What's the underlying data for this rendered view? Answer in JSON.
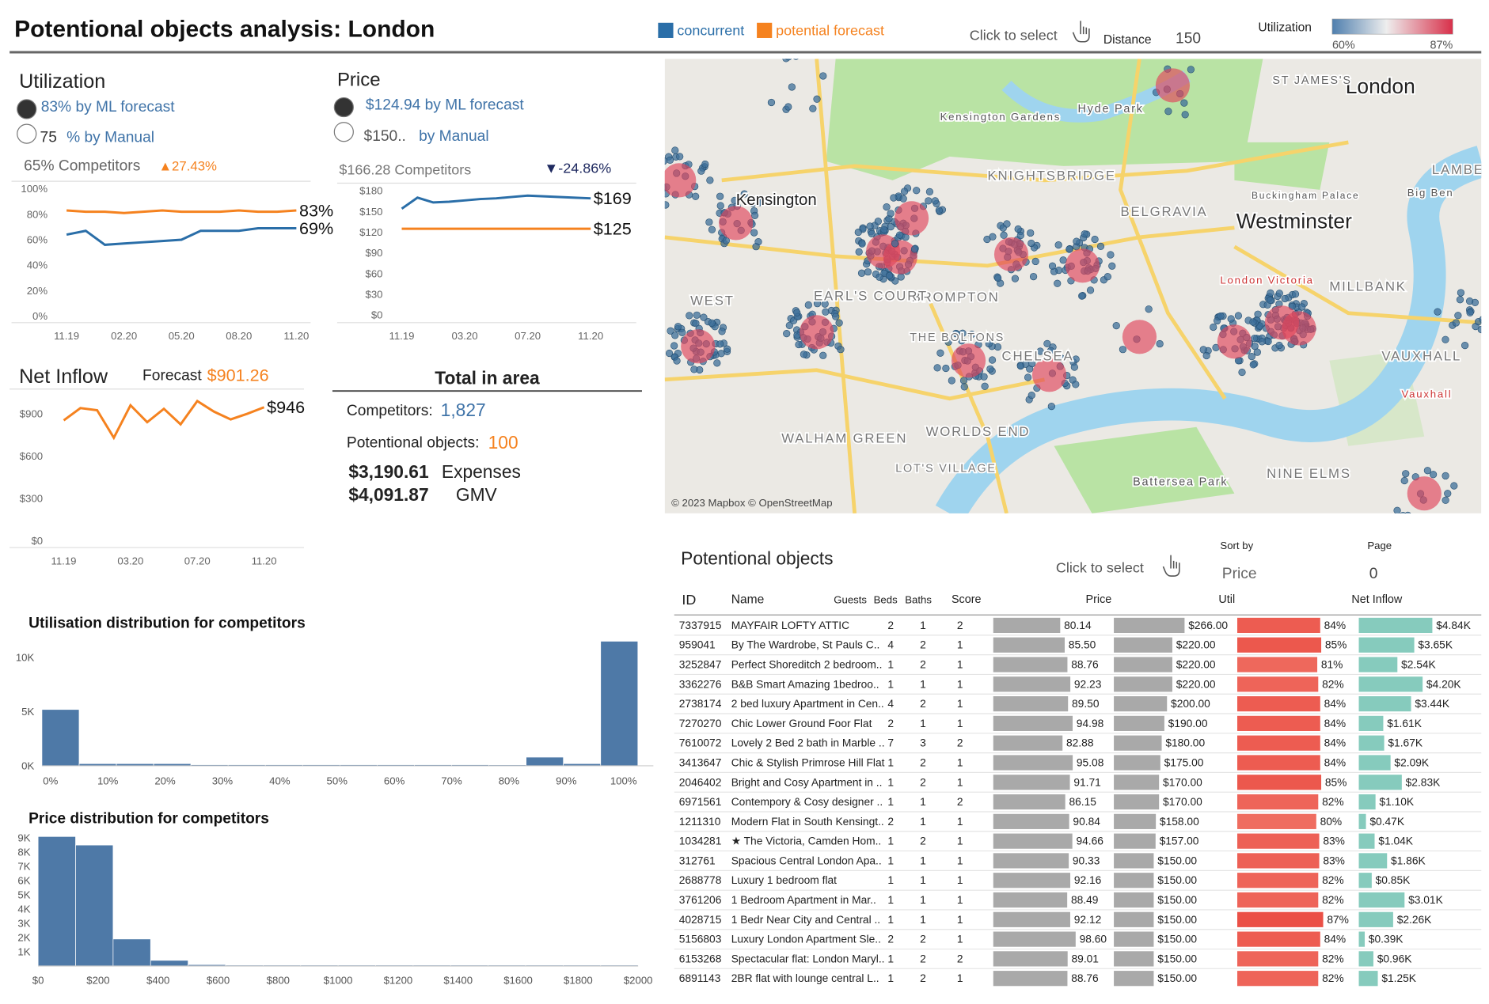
{
  "header": {
    "title": "Potentional objects analysis: London",
    "legend": [
      {
        "name": "concurrent",
        "color": "#2a6ea8"
      },
      {
        "name": "potential forecast",
        "color": "#f5821f"
      }
    ],
    "click_to_select": "Click to select",
    "distance_label": "Distance",
    "distance": "150",
    "utilization_label": "Utilization",
    "util_range": [
      {
        "value": 60,
        "label": "60%"
      },
      {
        "value": 87,
        "label": "87%"
      }
    ]
  },
  "utilization": {
    "title": "Utilization",
    "ml": "83% by ML forecast",
    "manual_value": "75",
    "manual_label": "% by Manual",
    "competitors": "65% Competitors",
    "change": "▲27.43%"
  },
  "price": {
    "title": "Price",
    "ml": "$124.94 by ML forecast",
    "manual_value": "$150..",
    "manual_label": "by Manual",
    "competitors": "$166.28 Competitors",
    "change": "▼-24.86%"
  },
  "net_inflow": {
    "title": "Net Inflow",
    "forecast_label": "Forecast",
    "forecast": "$901.26"
  },
  "totals": {
    "title": "Total in area",
    "competitors_label": "Competitors:",
    "competitors": "1,827",
    "objects_label": "Potentional objects:",
    "objects": "100",
    "expenses": "$3,190.61",
    "expenses_label": "Expenses",
    "gmv": "$4,091.87",
    "gmv_label": "GMV"
  },
  "chart_data": [
    {
      "type": "line",
      "categories": [
        "11.19",
        null,
        null,
        "02.20",
        null,
        null,
        "05.20",
        null,
        null,
        "08.20",
        null,
        null,
        "11.20"
      ],
      "ylim": [
        0,
        100
      ],
      "yticks": [
        {
          "value": 0,
          "label": "0%"
        },
        {
          "value": 20,
          "label": "20%"
        },
        {
          "value": 40,
          "label": "40%"
        },
        {
          "value": 60,
          "label": "60%"
        },
        {
          "value": 80,
          "label": "80%"
        },
        {
          "value": 100,
          "label": "100%"
        }
      ],
      "series": [
        {
          "color": "#f5821f",
          "values": [
            83,
            82,
            82,
            81,
            82,
            83,
            82,
            82,
            82,
            83,
            82,
            82,
            83
          ],
          "end_label": "83%"
        },
        {
          "color": "#2a6ea8",
          "values": [
            64,
            67,
            56,
            57,
            58,
            59,
            60,
            67,
            67,
            67,
            69,
            69,
            69
          ],
          "end_label": "69%"
        }
      ]
    },
    {
      "type": "line",
      "categories": [
        "11.19",
        null,
        null,
        null,
        "03.20",
        null,
        null,
        null,
        "07.20",
        null,
        null,
        null,
        "11.20"
      ],
      "ylim": [
        0,
        180
      ],
      "yticks": [
        {
          "value": 0,
          "label": "$0"
        },
        {
          "value": 30,
          "label": "$30"
        },
        {
          "value": 60,
          "label": "$60"
        },
        {
          "value": 90,
          "label": "$90"
        },
        {
          "value": 120,
          "label": "$120"
        },
        {
          "value": 150,
          "label": "$150"
        },
        {
          "value": 180,
          "label": "$180"
        }
      ],
      "series": [
        {
          "color": "#2a6ea8",
          "values": [
            154,
            170,
            163,
            164,
            166,
            168,
            169,
            171,
            173,
            172,
            171,
            170,
            169
          ],
          "end_label": "$169"
        },
        {
          "color": "#f5821f",
          "values": [
            125,
            125,
            125,
            125,
            125,
            125,
            125,
            125,
            125,
            125,
            125,
            125,
            125
          ],
          "end_label": "$125"
        }
      ]
    },
    {
      "type": "line",
      "categories": [
        "11.19",
        null,
        null,
        null,
        "03.20",
        null,
        null,
        null,
        "07.20",
        null,
        null,
        null,
        "11.20"
      ],
      "ylim": [
        0,
        900
      ],
      "yticks": [
        {
          "value": 0,
          "label": "$0"
        },
        {
          "value": 300,
          "label": "$300"
        },
        {
          "value": 600,
          "label": "$600"
        },
        {
          "value": 900,
          "label": "$900"
        }
      ],
      "series": [
        {
          "color": "#f5821f",
          "values": [
            853,
            940,
            925,
            730,
            960,
            840,
            935,
            825,
            990,
            915,
            860,
            900,
            946
          ],
          "end_label": "$946"
        }
      ]
    },
    {
      "type": "histogram",
      "title": "Utilisation distribution for competitors",
      "color": "#4e79a7",
      "bins": [
        -1.5,
        5,
        11.5,
        18,
        24.5,
        31,
        37.5,
        44,
        50.5,
        57,
        63.5,
        70,
        76.5,
        83,
        89.5,
        96,
        102.5
      ],
      "values": [
        5200,
        200,
        200,
        200,
        100,
        100,
        100,
        100,
        100,
        100,
        100,
        100,
        0,
        800,
        200,
        11500
      ],
      "xlim": [
        -1.5,
        105.2
      ],
      "xticks": [
        {
          "value": 0,
          "label": "0%"
        },
        {
          "value": 10,
          "label": "10%"
        },
        {
          "value": 20,
          "label": "20%"
        },
        {
          "value": 30,
          "label": "30%"
        },
        {
          "value": 40,
          "label": "40%"
        },
        {
          "value": 50,
          "label": "50%"
        },
        {
          "value": 60,
          "label": "60%"
        },
        {
          "value": 70,
          "label": "70%"
        },
        {
          "value": 80,
          "label": "80%"
        },
        {
          "value": 90,
          "label": "90%"
        },
        {
          "value": 100,
          "label": "100%"
        }
      ],
      "ylim": [
        0,
        12000
      ],
      "yticks": [
        {
          "value": 0,
          "label": "0K"
        },
        {
          "value": 5000,
          "label": "5K"
        },
        {
          "value": 10000,
          "label": "10K"
        }
      ]
    },
    {
      "type": "histogram",
      "title": "Price distribution for competitors",
      "color": "#4e79a7",
      "bins": [
        0,
        125,
        250,
        375,
        500,
        625,
        750,
        875,
        1000,
        1125,
        1250,
        1375,
        1500,
        1625,
        1750,
        1875,
        2000
      ],
      "values": [
        9100,
        8500,
        1900,
        400,
        100,
        0,
        0,
        0,
        0,
        0,
        0,
        0,
        0,
        0,
        0,
        0
      ],
      "xlim": [
        0,
        2000
      ],
      "xticks": [
        {
          "value": 0,
          "label": "$0"
        },
        {
          "value": 200,
          "label": "$200"
        },
        {
          "value": 400,
          "label": "$400"
        },
        {
          "value": 600,
          "label": "$600"
        },
        {
          "value": 800,
          "label": "$800"
        },
        {
          "value": 1000,
          "label": "$1000"
        },
        {
          "value": 1200,
          "label": "$1200"
        },
        {
          "value": 1400,
          "label": "$1400"
        },
        {
          "value": 1600,
          "label": "$1600"
        },
        {
          "value": 1800,
          "label": "$1800"
        },
        {
          "value": 2000,
          "label": "$2000"
        }
      ],
      "ylim": [
        0,
        9000
      ],
      "yticks": [
        {
          "value": 1000,
          "label": "1K"
        },
        {
          "value": 2000,
          "label": "2K"
        },
        {
          "value": 3000,
          "label": "3K"
        },
        {
          "value": 4000,
          "label": "4K"
        },
        {
          "value": 5000,
          "label": "5K"
        },
        {
          "value": 6000,
          "label": "6K"
        },
        {
          "value": 7000,
          "label": "7K"
        },
        {
          "value": 8000,
          "label": "8K"
        },
        {
          "value": 9000,
          "label": "9K"
        }
      ]
    }
  ],
  "map": {
    "labels": [
      "London",
      "ST JAMES'S",
      "Kensington",
      "Kensington Gardens",
      "Hyde Park",
      "KNIGHTSBRIDGE",
      "Buckingham Palace",
      "Big Ben",
      "LAMBE",
      "BELGRAVIA",
      "Westminster",
      "BROMPTON",
      "EARL'S COURT",
      "THE BOLTONS",
      "CHELSEA",
      "MILLBANK",
      "VAUXHALL",
      "WORLDS END",
      "WALHAM GREEN",
      "LOT'S VILLAGE",
      "NINE ELMS",
      "Battersea Park",
      "London Victoria",
      "Vauxhall",
      "WEST"
    ],
    "attribution": "© 2023 Mapbox © OpenStreetMap"
  },
  "table": {
    "title": "Potentional objects",
    "click_to_select": "Click to select",
    "sort_label": "Sort by",
    "sort": "Price",
    "page_label": "Page",
    "page": "0",
    "columns": [
      "ID",
      "Name",
      "Guests",
      "Beds",
      "Baths",
      "Score",
      "Price",
      "Util",
      "Net Inflow"
    ],
    "rows": [
      {
        "id": "7337915",
        "name": "MAYFAIR LOFTY ATTIC",
        "guests": 2,
        "beds": 1,
        "baths": 2,
        "score": 80.14,
        "score_label": "80.14",
        "price": 266,
        "price_label": "$266.00",
        "util": 84,
        "util_label": "84%",
        "inflow": 4840,
        "inflow_label": "$4.84K"
      },
      {
        "id": "959041",
        "name": "By The Wardrobe, St Pauls C..",
        "guests": 4,
        "beds": 2,
        "baths": 1,
        "score": 85.5,
        "score_label": "85.50",
        "price": 220,
        "price_label": "$220.00",
        "util": 85,
        "util_label": "85%",
        "inflow": 3650,
        "inflow_label": "$3.65K"
      },
      {
        "id": "3252847",
        "name": "Perfect Shoreditch 2 bedroom..",
        "guests": 1,
        "beds": 2,
        "baths": 1,
        "score": 88.76,
        "score_label": "88.76",
        "price": 220,
        "price_label": "$220.00",
        "util": 81,
        "util_label": "81%",
        "inflow": 2540,
        "inflow_label": "$2.54K"
      },
      {
        "id": "3362276",
        "name": "B&B Smart Amazing 1bedroo..",
        "guests": 1,
        "beds": 1,
        "baths": 1,
        "score": 92.23,
        "score_label": "92.23",
        "price": 220,
        "price_label": "$220.00",
        "util": 82,
        "util_label": "82%",
        "inflow": 4200,
        "inflow_label": "$4.20K"
      },
      {
        "id": "2738174",
        "name": "2 bed luxury Apartment in Cen..",
        "guests": 4,
        "beds": 2,
        "baths": 1,
        "score": 89.5,
        "score_label": "89.50",
        "price": 200,
        "price_label": "$200.00",
        "util": 84,
        "util_label": "84%",
        "inflow": 3440,
        "inflow_label": "$3.44K"
      },
      {
        "id": "7270270",
        "name": "Chic Lower Ground Foor Flat",
        "guests": 2,
        "beds": 1,
        "baths": 1,
        "score": 94.98,
        "score_label": "94.98",
        "price": 190,
        "price_label": "$190.00",
        "util": 84,
        "util_label": "84%",
        "inflow": 1610,
        "inflow_label": "$1.61K"
      },
      {
        "id": "7610072",
        "name": "Lovely 2 Bed 2 bath in Marble ..",
        "guests": 7,
        "beds": 3,
        "baths": 2,
        "score": 82.88,
        "score_label": "82.88",
        "price": 180,
        "price_label": "$180.00",
        "util": 84,
        "util_label": "84%",
        "inflow": 1670,
        "inflow_label": "$1.67K"
      },
      {
        "id": "3413647",
        "name": "Chic & Stylish Primrose Hill Flat",
        "guests": 1,
        "beds": 2,
        "baths": 1,
        "score": 95.08,
        "score_label": "95.08",
        "price": 175,
        "price_label": "$175.00",
        "util": 84,
        "util_label": "84%",
        "inflow": 2090,
        "inflow_label": "$2.09K"
      },
      {
        "id": "2046402",
        "name": "Bright and Cosy Apartment in ..",
        "guests": 1,
        "beds": 2,
        "baths": 1,
        "score": 91.71,
        "score_label": "91.71",
        "price": 170,
        "price_label": "$170.00",
        "util": 85,
        "util_label": "85%",
        "inflow": 2830,
        "inflow_label": "$2.83K"
      },
      {
        "id": "6971561",
        "name": "Contempory & Cosy designer ..",
        "guests": 1,
        "beds": 1,
        "baths": 2,
        "score": 86.15,
        "score_label": "86.15",
        "price": 170,
        "price_label": "$170.00",
        "util": 82,
        "util_label": "82%",
        "inflow": 1100,
        "inflow_label": "$1.10K"
      },
      {
        "id": "1211310",
        "name": "Modern Flat in South Kensingt..",
        "guests": 2,
        "beds": 1,
        "baths": 1,
        "score": 90.84,
        "score_label": "90.84",
        "price": 158,
        "price_label": "$158.00",
        "util": 80,
        "util_label": "80%",
        "inflow": 470,
        "inflow_label": "$0.47K"
      },
      {
        "id": "1034281",
        "name": "★ The Victoria, Camden Hom..",
        "guests": 1,
        "beds": 2,
        "baths": 1,
        "score": 94.66,
        "score_label": "94.66",
        "price": 157,
        "price_label": "$157.00",
        "util": 83,
        "util_label": "83%",
        "inflow": 1040,
        "inflow_label": "$1.04K"
      },
      {
        "id": "312761",
        "name": "Spacious Central London Apa..",
        "guests": 1,
        "beds": 1,
        "baths": 1,
        "score": 90.33,
        "score_label": "90.33",
        "price": 150,
        "price_label": "$150.00",
        "util": 83,
        "util_label": "83%",
        "inflow": 1860,
        "inflow_label": "$1.86K"
      },
      {
        "id": "2688778",
        "name": "Luxury 1 bedroom flat",
        "guests": 1,
        "beds": 1,
        "baths": 1,
        "score": 92.16,
        "score_label": "92.16",
        "price": 150,
        "price_label": "$150.00",
        "util": 82,
        "util_label": "82%",
        "inflow": 850,
        "inflow_label": "$0.85K"
      },
      {
        "id": "3761206",
        "name": "1  Bedroom Apartment in Mar..",
        "guests": 1,
        "beds": 1,
        "baths": 1,
        "score": 88.49,
        "score_label": "88.49",
        "price": 150,
        "price_label": "$150.00",
        "util": 82,
        "util_label": "82%",
        "inflow": 3010,
        "inflow_label": "$3.01K"
      },
      {
        "id": "4028715",
        "name": "1 Bedr Near City and Central ..",
        "guests": 1,
        "beds": 1,
        "baths": 1,
        "score": 92.12,
        "score_label": "92.12",
        "price": 150,
        "price_label": "$150.00",
        "util": 87,
        "util_label": "87%",
        "inflow": 2260,
        "inflow_label": "$2.26K"
      },
      {
        "id": "5156803",
        "name": "Luxury London Apartment Sle..",
        "guests": 2,
        "beds": 2,
        "baths": 1,
        "score": 98.6,
        "score_label": "98.60",
        "price": 150,
        "price_label": "$150.00",
        "util": 84,
        "util_label": "84%",
        "inflow": 390,
        "inflow_label": "$0.39K"
      },
      {
        "id": "6153268",
        "name": "Spectacular flat: London Maryl..",
        "guests": 1,
        "beds": 2,
        "baths": 2,
        "score": 89.01,
        "score_label": "89.01",
        "price": 150,
        "price_label": "$150.00",
        "util": 82,
        "util_label": "82%",
        "inflow": 960,
        "inflow_label": "$0.96K"
      },
      {
        "id": "6891143",
        "name": "2BR flat with lounge central L..",
        "guests": 1,
        "beds": 2,
        "baths": 1,
        "score": 88.76,
        "score_label": "88.76",
        "price": 150,
        "price_label": "$150.00",
        "util": 82,
        "util_label": "82%",
        "inflow": 1250,
        "inflow_label": "$1.25K"
      }
    ]
  }
}
